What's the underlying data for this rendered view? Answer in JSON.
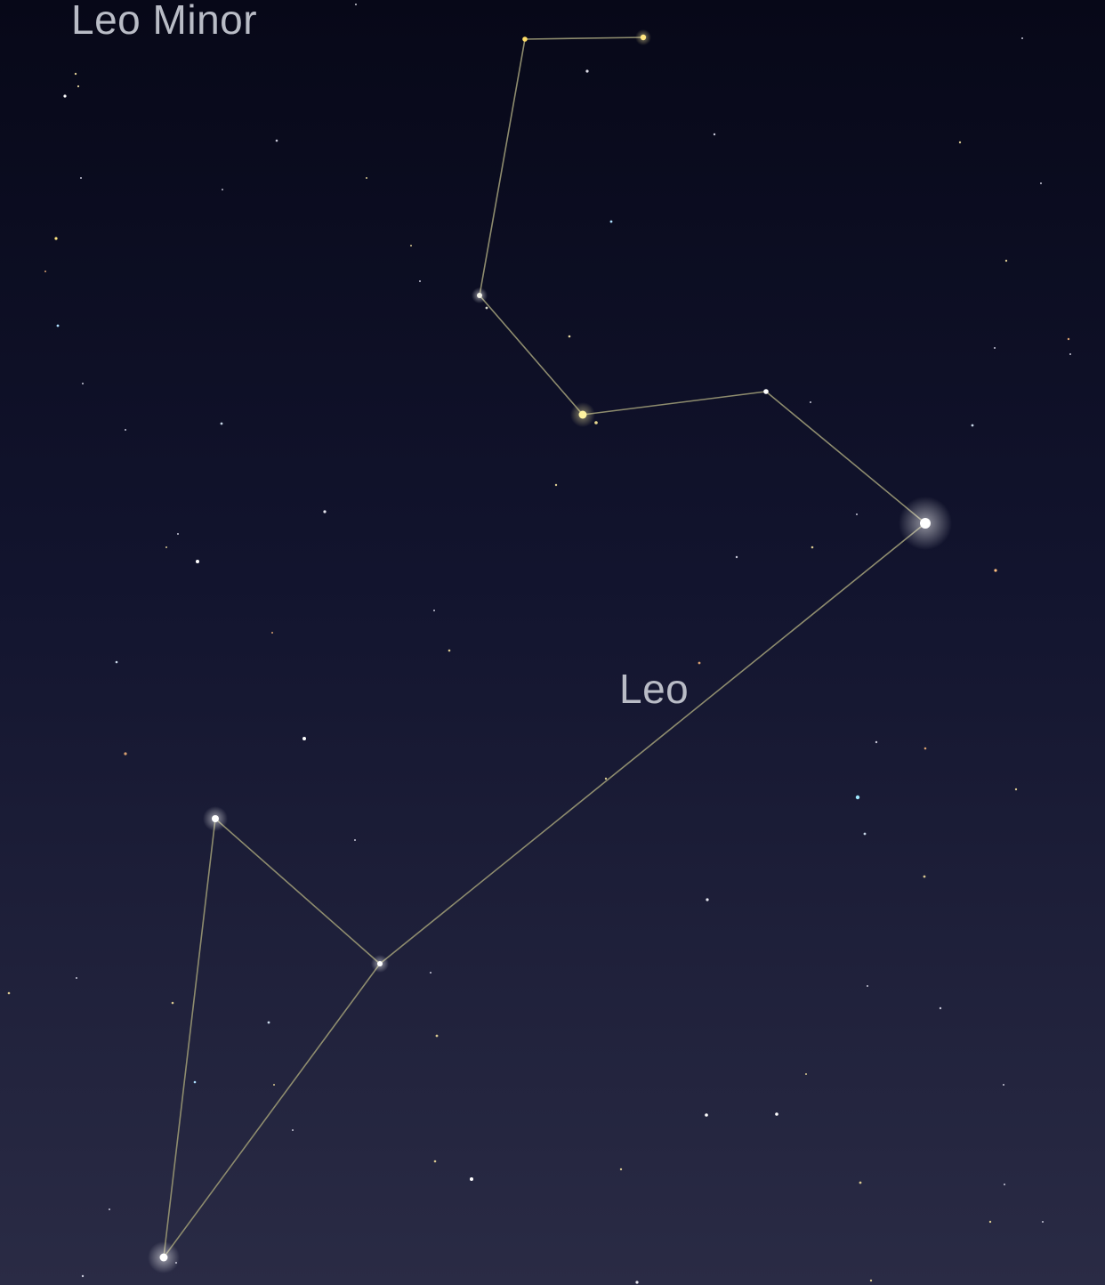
{
  "labels": {
    "leo_minor": "Leo Minor",
    "leo": "Leo"
  },
  "colors": {
    "sky_top": "#070818",
    "sky_mid": "#12142e",
    "sky_bottom": "#2a2b45",
    "constellation_line": "#8e8c6e",
    "label_text": "#b9bcc6"
  }
}
